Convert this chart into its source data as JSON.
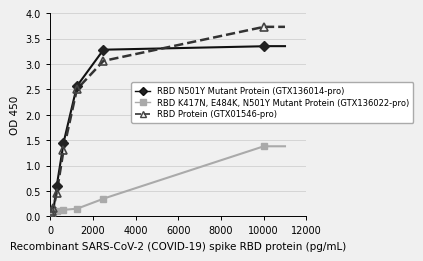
{
  "title": "",
  "xlabel": "Recombinant SARS-CoV-2 (COVID-19) spike RBD protein (pg/mL)",
  "ylabel": "OD 450",
  "xlim": [
    0,
    12000
  ],
  "ylim": [
    0,
    4.0
  ],
  "xticks": [
    0,
    2000,
    4000,
    6000,
    8000,
    10000,
    12000
  ],
  "yticks": [
    0,
    0.5,
    1.0,
    1.5,
    2.0,
    2.5,
    3.0,
    3.5,
    4.0
  ],
  "series1_name": "RBD N501Y Mutant Protein (GTX136014-pro)",
  "series1_x": [
    39.0625,
    78.125,
    156.25,
    312.5,
    625,
    1250,
    2500,
    10000
  ],
  "series1_y": [
    0.05,
    0.07,
    0.12,
    0.6,
    1.44,
    2.56,
    3.28,
    3.35
  ],
  "series1_color": "#222222",
  "series1_marker": "D",
  "series1_markersize": 5,
  "series2_name": "RBD K417N, E484K, N501Y Mutant Protein (GTX136022-pro)",
  "series2_x": [
    39.0625,
    78.125,
    156.25,
    312.5,
    625,
    1250,
    2500,
    10000
  ],
  "series2_y": [
    0.04,
    0.06,
    0.08,
    0.1,
    0.13,
    0.15,
    0.35,
    1.38
  ],
  "series2_color": "#aaaaaa",
  "series2_marker": "s",
  "series2_markersize": 5,
  "series3_name": "RBD Protein (GTX01546-pro)",
  "series3_x": [
    39.0625,
    78.125,
    156.25,
    312.5,
    625,
    1250,
    2500,
    10000
  ],
  "series3_y": [
    0.07,
    0.1,
    0.16,
    0.47,
    1.3,
    2.5,
    3.06,
    3.73
  ],
  "series3_color": "#444444",
  "series3_marker": "^",
  "series3_markersize": 6,
  "curve1_color": "#111111",
  "curve1_linestyle": "-",
  "curve1_linewidth": 1.5,
  "curve2_color": "#aaaaaa",
  "curve2_linestyle": "-",
  "curve2_linewidth": 1.5,
  "curve3_color": "#333333",
  "curve3_linestyle": "--",
  "curve3_linewidth": 1.8,
  "background_color": "#f0f0f0",
  "grid_color": "#d0d0d0",
  "legend_fontsize": 6.0,
  "axis_fontsize": 7.5,
  "tick_fontsize": 7.0
}
